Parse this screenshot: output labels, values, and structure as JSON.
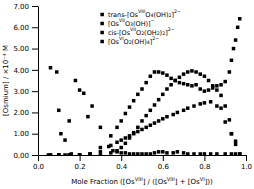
{
  "chart_data": {
    "type": "scatter",
    "xlabel": "Mole Fraction ([OsVIII] / ([OsVIII] + [OsVI]))",
    "ylabel": "[Osmium] / ×10⁻⁴ M",
    "xlim": [
      0.0,
      1.0
    ],
    "ylim": [
      0.0,
      7.0
    ],
    "xticks": [
      {
        "value": 0.0,
        "label": "0.0"
      },
      0.2,
      0.4,
      0.6,
      0.8,
      {
        "value": 1.0,
        "label": "1.0"
      }
    ],
    "yticks": [
      {
        "value": 0.0,
        "label": "0.00"
      },
      {
        "value": 1.0,
        "label": "1.00"
      },
      {
        "value": 2.0,
        "label": "2.00"
      },
      {
        "value": 3.0,
        "label": "3.00"
      },
      {
        "value": 4.0,
        "label": "4.00"
      },
      {
        "value": 5.0,
        "label": "5.00"
      },
      {
        "value": 6.0,
        "label": "6.00"
      },
      {
        "value": 7.0,
        "label": "7.00"
      }
    ],
    "grid": false,
    "legend": "top",
    "series": [
      {
        "name": "trans-[OsVIIIO4(OH)2]2−",
        "color": "black",
        "marker": "square",
        "x": [
          0.06,
          0.09,
          0.1,
          0.11,
          0.13,
          0.15,
          0.18,
          0.2,
          0.22,
          0.24,
          0.26,
          0.3,
          0.34,
          0.36,
          0.38,
          0.4,
          0.42,
          0.44,
          0.46,
          0.48,
          0.5,
          0.52,
          0.54,
          0.56,
          0.58,
          0.6,
          0.62,
          0.65,
          0.67,
          0.7,
          0.72,
          0.75,
          0.78,
          0.8,
          0.83,
          0.86,
          0.9,
          0.93,
          0.95
        ],
        "values": [
          4.1,
          3.9,
          2.1,
          1.0,
          0.7,
          1.6,
          3.5,
          3.05,
          2.9,
          1.8,
          2.3,
          1.3,
          0.4,
          0.2,
          0.15,
          0.1,
          0.1,
          0.05,
          0.05,
          0.05,
          0.05,
          0.05,
          0.05,
          0.1,
          0.15,
          0.15,
          0.1,
          0.1,
          0.15,
          0.1,
          0.05,
          0.05,
          0.05,
          0.05,
          0.05,
          0.05,
          0.05,
          0.05,
          0.05
        ]
      },
      {
        "name": "[OsVIIO3(OH)]−",
        "color": "black",
        "marker": "square",
        "x": [
          0.06,
          0.1,
          0.13,
          0.16,
          0.2,
          0.25,
          0.3,
          0.35,
          0.38,
          0.4,
          0.42,
          0.44,
          0.46,
          0.48,
          0.5,
          0.52,
          0.54,
          0.56,
          0.58,
          0.6,
          0.62,
          0.65,
          0.67,
          0.7,
          0.72,
          0.75,
          0.78,
          0.8,
          0.83,
          0.86,
          0.88,
          0.9,
          0.93,
          0.95,
          0.97
        ],
        "values": [
          0.0,
          0.0,
          0.0,
          0.05,
          0.0,
          0.05,
          0.15,
          0.45,
          0.6,
          0.7,
          0.8,
          0.9,
          1.0,
          1.1,
          1.2,
          1.3,
          1.4,
          1.5,
          1.6,
          1.7,
          1.8,
          1.9,
          2.0,
          2.1,
          2.2,
          2.3,
          2.4,
          2.45,
          2.5,
          2.3,
          2.2,
          1.55,
          1.0,
          0.65,
          0.05
        ]
      },
      {
        "name": "cis-[OsVIIO2(OH2)2]2−",
        "color": "black",
        "marker": "square",
        "x": [
          0.05,
          0.1,
          0.15,
          0.2,
          0.25,
          0.3,
          0.35,
          0.38,
          0.4,
          0.42,
          0.44,
          0.46,
          0.48,
          0.5,
          0.52,
          0.54,
          0.56,
          0.58,
          0.6,
          0.62,
          0.64,
          0.66,
          0.68,
          0.7,
          0.72,
          0.74,
          0.76,
          0.78,
          0.8,
          0.82,
          0.84,
          0.86,
          0.88,
          0.9,
          0.92,
          0.93,
          0.95,
          0.97
        ],
        "values": [
          0.0,
          0.0,
          0.0,
          0.0,
          0.0,
          0.0,
          0.1,
          0.2,
          0.35,
          0.55,
          0.8,
          1.05,
          1.3,
          1.6,
          1.85,
          2.1,
          2.35,
          2.6,
          2.85,
          3.1,
          3.3,
          3.5,
          3.65,
          3.8,
          3.9,
          3.95,
          3.9,
          3.8,
          3.7,
          3.5,
          3.25,
          3.05,
          2.8,
          2.3,
          1.65,
          1.0,
          0.5,
          0.05
        ]
      },
      {
        "name": "[OsVIO2(OH)4]2−",
        "color": "black",
        "marker": "square",
        "x": [
          0.06,
          0.1,
          0.15,
          0.2,
          0.25,
          0.3,
          0.35,
          0.38,
          0.4,
          0.42,
          0.44,
          0.46,
          0.48,
          0.5,
          0.52,
          0.54,
          0.56,
          0.58,
          0.6,
          0.62,
          0.64,
          0.66,
          0.68,
          0.7,
          0.72,
          0.74,
          0.76,
          0.78,
          0.8,
          0.82,
          0.84,
          0.86,
          0.88,
          0.9,
          0.92,
          0.93,
          0.94,
          0.95,
          0.96,
          0.97
        ],
        "values": [
          0.0,
          0.0,
          0.0,
          0.0,
          0.05,
          0.35,
          0.9,
          1.3,
          1.6,
          1.95,
          2.25,
          2.55,
          2.85,
          3.1,
          3.4,
          3.7,
          3.9,
          3.9,
          3.85,
          3.75,
          3.6,
          3.5,
          3.4,
          3.35,
          3.3,
          3.25,
          3.3,
          3.1,
          3.0,
          3.05,
          3.15,
          3.25,
          3.3,
          3.45,
          3.9,
          4.45,
          5.0,
          5.4,
          6.0,
          6.4
        ]
      }
    ]
  }
}
